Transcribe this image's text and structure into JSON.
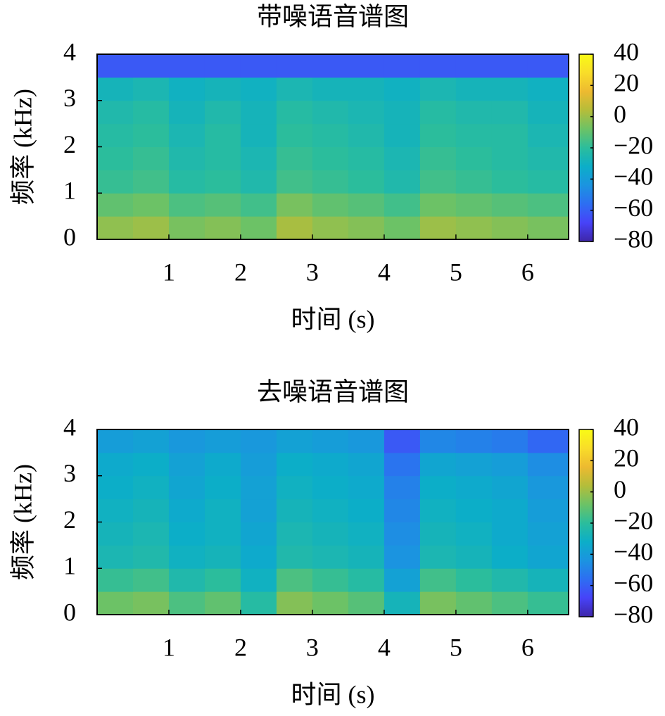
{
  "chart_data": [
    {
      "type": "heatmap",
      "title": "带噪语音谱图",
      "xlabel": "时间 (s)",
      "ylabel": "频率 (kHz)",
      "xlim": [
        0,
        6.57
      ],
      "ylim": [
        0,
        4
      ],
      "xticks": [
        1,
        2,
        3,
        4,
        5,
        6
      ],
      "yticks": [
        0,
        1,
        2,
        3,
        4
      ],
      "xbins": [
        0,
        0.5,
        1,
        1.5,
        2,
        2.5,
        3,
        3.5,
        4,
        4.5,
        5,
        5.5,
        6,
        6.57
      ],
      "ybins": [
        0,
        0.5,
        1,
        1.5,
        2,
        2.5,
        3,
        3.5,
        4
      ],
      "z": [
        [
          -2,
          0,
          -6,
          -4,
          -8,
          2,
          -2,
          -4,
          -8,
          0,
          -2,
          -4,
          -6
        ],
        [
          -10,
          -8,
          -14,
          -12,
          -16,
          -6,
          -10,
          -12,
          -16,
          -8,
          -10,
          -12,
          -14
        ],
        [
          -18,
          -16,
          -22,
          -20,
          -24,
          -16,
          -18,
          -20,
          -24,
          -16,
          -18,
          -20,
          -22
        ],
        [
          -20,
          -18,
          -24,
          -22,
          -26,
          -18,
          -20,
          -22,
          -26,
          -18,
          -20,
          -22,
          -24
        ],
        [
          -22,
          -20,
          -26,
          -22,
          -28,
          -20,
          -22,
          -24,
          -28,
          -20,
          -22,
          -22,
          -26
        ],
        [
          -24,
          -22,
          -28,
          -24,
          -28,
          -22,
          -24,
          -26,
          -28,
          -22,
          -24,
          -24,
          -28
        ],
        [
          -28,
          -26,
          -30,
          -28,
          -30,
          -26,
          -28,
          -28,
          -30,
          -26,
          -28,
          -28,
          -30
        ],
        [
          -62,
          -62,
          -62,
          -62,
          -62,
          -62,
          -62,
          -62,
          -62,
          -62,
          -62,
          -62,
          -62
        ]
      ],
      "clim": [
        -80,
        40
      ],
      "cticks": [
        40,
        20,
        0,
        {
          "value": -20,
          "label": "−20"
        },
        {
          "value": -40,
          "label": "−40"
        },
        {
          "value": -60,
          "label": "−60"
        },
        {
          "value": -80,
          "label": "−80"
        }
      ],
      "colormap": [
        "#3e26a8",
        "#4743f8",
        "#2d6ef2",
        "#1b94e0",
        "#0caec8",
        "#2bbd9c",
        "#6cc266",
        "#b4bd3a",
        "#edba30",
        "#f9dd29",
        "#f9fb15"
      ]
    },
    {
      "type": "heatmap",
      "title": "去噪语音谱图",
      "xlabel": "时间 (s)",
      "ylabel": "频率 (kHz)",
      "xlim": [
        0,
        6.57
      ],
      "ylim": [
        0,
        4
      ],
      "xticks": [
        1,
        2,
        3,
        4,
        5,
        6
      ],
      "yticks": [
        0,
        1,
        2,
        3,
        4
      ],
      "xbins": [
        0,
        0.5,
        1,
        1.5,
        2,
        2.5,
        3,
        3.5,
        4,
        4.5,
        5,
        5.5,
        6,
        6.57
      ],
      "ybins": [
        0,
        0.5,
        1,
        1.5,
        2,
        2.5,
        3,
        3.5,
        4
      ],
      "z": [
        [
          -8,
          -6,
          -14,
          -10,
          -22,
          -4,
          -8,
          -12,
          -28,
          -6,
          -10,
          -14,
          -18
        ],
        [
          -18,
          -16,
          -24,
          -20,
          -30,
          -14,
          -18,
          -22,
          -38,
          -16,
          -20,
          -24,
          -28
        ],
        [
          -26,
          -24,
          -30,
          -28,
          -34,
          -24,
          -26,
          -28,
          -44,
          -26,
          -28,
          -32,
          -36
        ],
        [
          -28,
          -26,
          -32,
          -30,
          -36,
          -26,
          -28,
          -30,
          -46,
          -28,
          -30,
          -34,
          -38
        ],
        [
          -30,
          -28,
          -34,
          -30,
          -38,
          -28,
          -30,
          -32,
          -48,
          -30,
          -32,
          -34,
          -40
        ],
        [
          -32,
          -30,
          -36,
          -32,
          -38,
          -30,
          -32,
          -34,
          -50,
          -32,
          -34,
          -36,
          -42
        ],
        [
          -34,
          -32,
          -38,
          -34,
          -40,
          -32,
          -34,
          -36,
          -54,
          -36,
          -38,
          -40,
          -46
        ],
        [
          -40,
          -38,
          -42,
          -40,
          -42,
          -38,
          -40,
          -42,
          -62,
          -48,
          -50,
          -52,
          -58
        ]
      ],
      "clim": [
        -80,
        40
      ],
      "cticks": [
        40,
        20,
        0,
        {
          "value": -20,
          "label": "−20"
        },
        {
          "value": -40,
          "label": "−40"
        },
        {
          "value": -60,
          "label": "−60"
        },
        {
          "value": -80,
          "label": "−80"
        }
      ],
      "colormap": [
        "#3e26a8",
        "#4743f8",
        "#2d6ef2",
        "#1b94e0",
        "#0caec8",
        "#2bbd9c",
        "#6cc266",
        "#b4bd3a",
        "#edba30",
        "#f9dd29",
        "#f9fb15"
      ]
    }
  ]
}
